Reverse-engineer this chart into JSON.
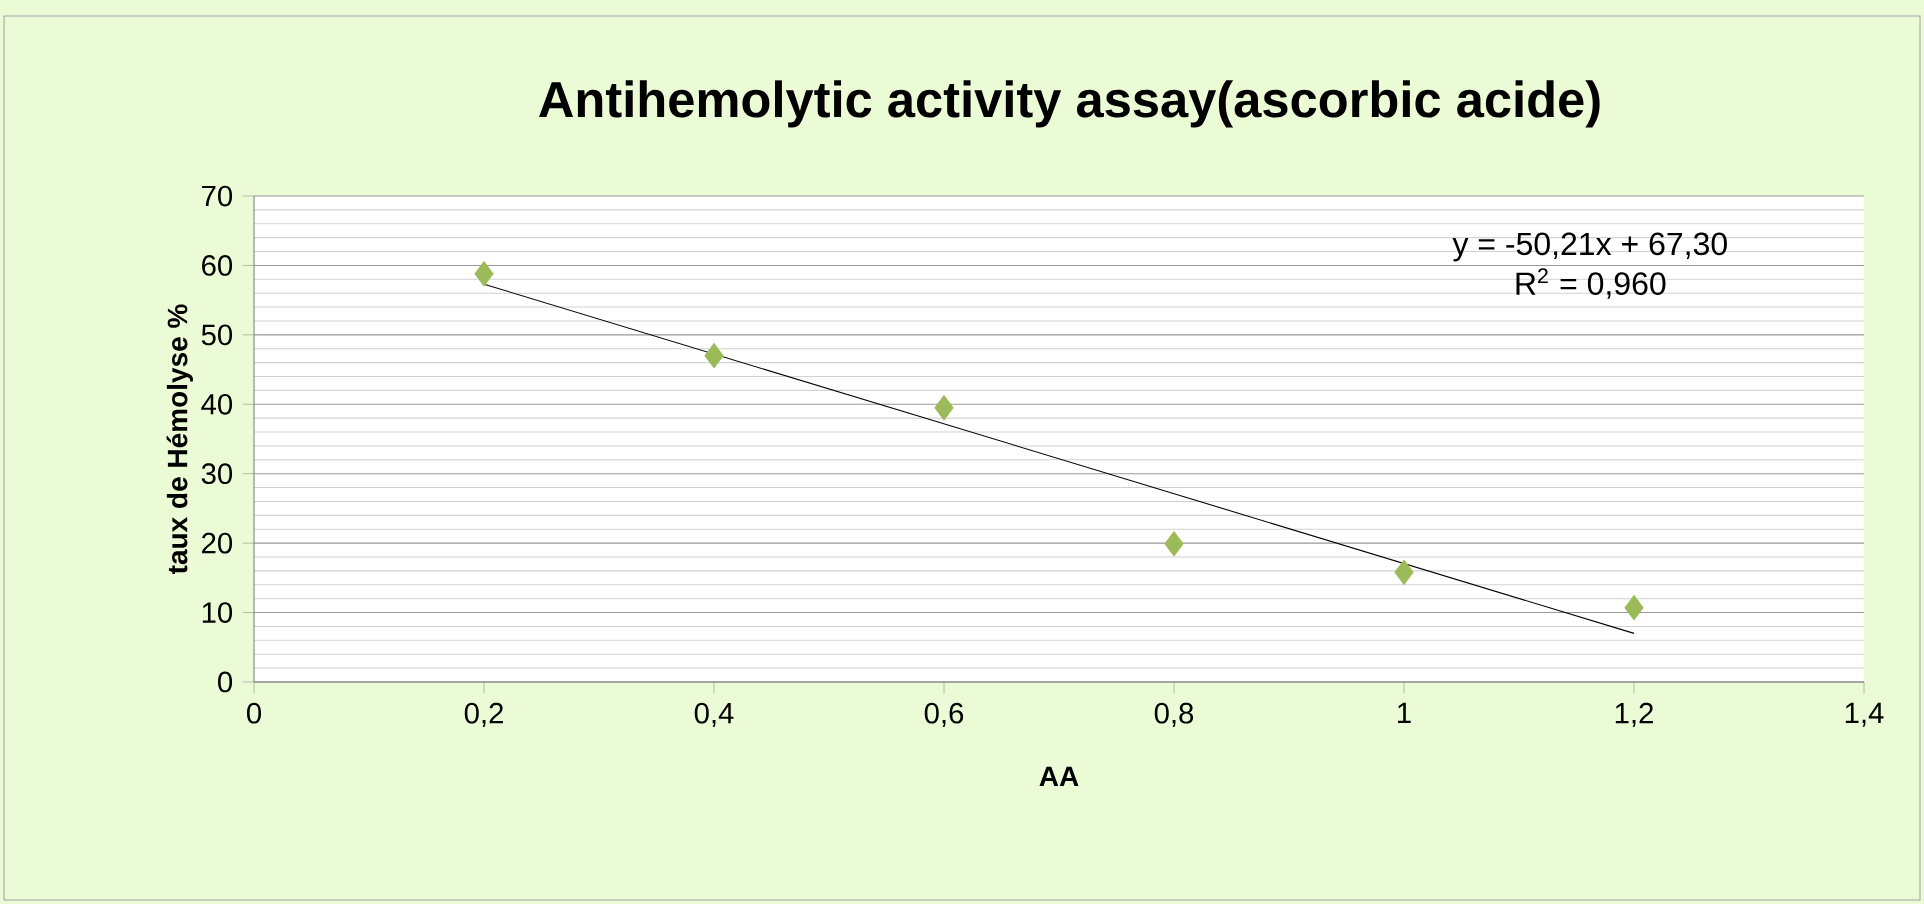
{
  "chart_data": {
    "type": "scatter",
    "title": "Antihemolytic activity assay(ascorbic acide)",
    "xlabel": "AA",
    "ylabel": "taux de Hémolyse %",
    "series": [
      {
        "color": "#9bbb59",
        "marker": "diamond",
        "x": [
          0.2,
          0.4,
          0.6,
          0.8,
          1.0,
          1.2
        ],
        "values": [
          58.8,
          47,
          39.5,
          19.9,
          15.8,
          10.7
        ]
      },
      {
        "type": "line",
        "color": "#000000",
        "marker": "none",
        "line_style": "solid",
        "x": [
          0.2,
          1.2
        ],
        "values": [
          57.3,
          7.0
        ]
      }
    ],
    "annotations": [
      "y = -50,21x + 67,30",
      "R$^{2}$ = 0,960"
    ],
    "xlim": [
      0,
      1.4
    ],
    "xticks": [
      0,
      {
        "value": 0.2,
        "label": "0,2"
      },
      {
        "value": 0.4,
        "label": "0,4"
      },
      {
        "value": 0.6,
        "label": "0,6"
      },
      {
        "value": 0.8,
        "label": "0,8"
      },
      1,
      {
        "value": 1.2,
        "label": "1,2"
      },
      {
        "value": 1.4,
        "label": "1,4"
      }
    ],
    "ylim": [
      0,
      70
    ],
    "yticks": [
      0,
      10,
      20,
      30,
      40,
      50,
      60,
      70
    ],
    "grid": "y"
  }
}
